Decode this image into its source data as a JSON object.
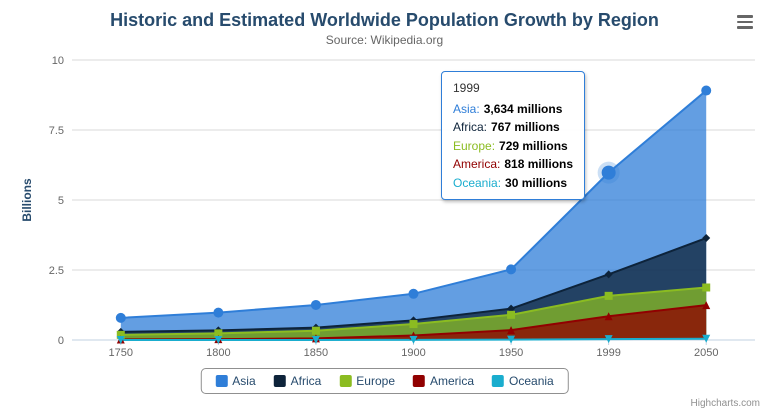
{
  "credits": "Highcharts.com",
  "tooltip": {
    "header": "1999",
    "rows": [
      {
        "label": "Asia:",
        "value": "3,634 millions",
        "color": "#2f7ed8"
      },
      {
        "label": "Africa:",
        "value": "767 millions",
        "color": "#0d233a"
      },
      {
        "label": "Europe:",
        "value": "729 millions",
        "color": "#8bbc21"
      },
      {
        "label": "America:",
        "value": "818 millions",
        "color": "#910000"
      },
      {
        "label": "Oceania:",
        "value": "30 millions",
        "color": "#1aadce"
      }
    ]
  },
  "chart_data": {
    "type": "area",
    "stacked": true,
    "title": "Historic and Estimated Worldwide Population Growth by Region",
    "subtitle": "Source: Wikipedia.org",
    "ylabel": "Billions",
    "ylim": [
      0,
      10
    ],
    "yticks": [
      0,
      2.5,
      5,
      7.5,
      10
    ],
    "categories": [
      "1750",
      "1800",
      "1850",
      "1900",
      "1950",
      "1999",
      "2050"
    ],
    "values_unit": "millions",
    "series": [
      {
        "name": "Asia",
        "color": "#2f7ed8",
        "marker": "circle",
        "values": [
          502,
          635,
          809,
          947,
          1402,
          3634,
          5268
        ]
      },
      {
        "name": "Africa",
        "color": "#0d233a",
        "marker": "diamond",
        "values": [
          106,
          107,
          111,
          133,
          221,
          767,
          1766
        ]
      },
      {
        "name": "Europe",
        "color": "#8bbc21",
        "marker": "square",
        "values": [
          163,
          203,
          276,
          408,
          547,
          729,
          628
        ]
      },
      {
        "name": "America",
        "color": "#910000",
        "marker": "triangle",
        "values": [
          18,
          31,
          54,
          156,
          339,
          818,
          1201
        ]
      },
      {
        "name": "Oceania",
        "color": "#1aadce",
        "marker": "triangle-down",
        "values": [
          2,
          2,
          2,
          6,
          13,
          30,
          46
        ]
      }
    ],
    "stack_order": "last_series_at_bottom",
    "legend_position": "bottom",
    "grid": "horizontal",
    "hover_point": {
      "category": "1999",
      "series": "Asia"
    }
  }
}
